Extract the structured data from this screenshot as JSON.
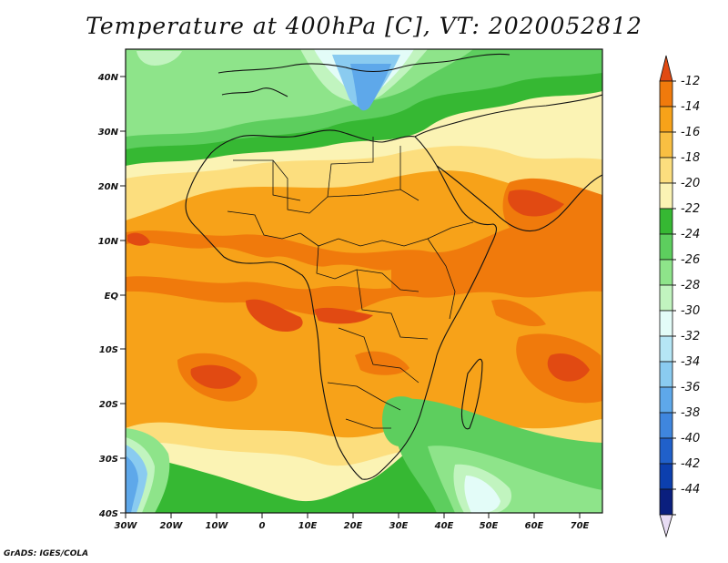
{
  "title": "Temperature at 400hPa [C], VT: 2020052812",
  "credit": "GrADS: IGES/COLA",
  "map": {
    "y_ticks": [
      "40N",
      "30N",
      "20N",
      "10N",
      "EQ",
      "10S",
      "20S",
      "30S",
      "40S"
    ],
    "x_ticks": [
      "30W",
      "20W",
      "10W",
      "0",
      "10E",
      "20E",
      "30E",
      "40E",
      "50E",
      "60E",
      "70E"
    ],
    "lat_range": [
      -40,
      45
    ],
    "lon_range": [
      -30,
      75
    ]
  },
  "colorbar": {
    "labels": [
      "-12",
      "-14",
      "-16",
      "-18",
      "-20",
      "-22",
      "-24",
      "-26",
      "-28",
      "-30",
      "-32",
      "-34",
      "-36",
      "-38",
      "-40",
      "-42",
      "-44"
    ],
    "colors": [
      "#e14a12",
      "#f07a0c",
      "#f7a219",
      "#f9bf42",
      "#fcde7e",
      "#fbf3b4",
      "#36b833",
      "#5dce5e",
      "#8ee48a",
      "#c1f4bf",
      "#e3fcf8",
      "#b5e6f5",
      "#8acbf0",
      "#5ea8ea",
      "#3f86de",
      "#2060ca",
      "#0c3fae",
      "#0a1f7e",
      "#e8dcf4"
    ]
  }
}
